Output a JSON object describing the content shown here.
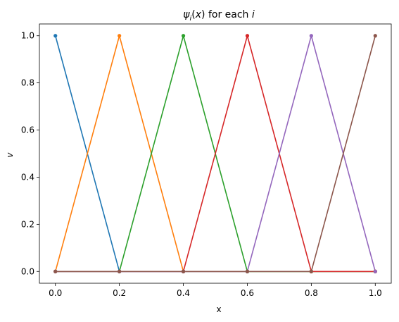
{
  "chart_data": {
    "type": "line",
    "title_parts": {
      "psi": "ψ",
      "sub": "i",
      "rest": "(",
      "x": "x",
      "close": ") for each ",
      "i": "i"
    },
    "xlabel": "x",
    "ylabel": "v",
    "xlim": [
      -0.05,
      1.05
    ],
    "ylim": [
      -0.05,
      1.05
    ],
    "xticks": [
      0.0,
      0.2,
      0.4,
      0.6,
      0.8,
      1.0
    ],
    "xtick_labels": [
      "0.0",
      "0.2",
      "0.4",
      "0.6",
      "0.8",
      "1.0"
    ],
    "yticks": [
      0.0,
      0.2,
      0.4,
      0.6,
      0.8,
      1.0
    ],
    "ytick_labels": [
      "0.0",
      "0.2",
      "0.4",
      "0.6",
      "0.8",
      "1.0"
    ],
    "grid": false,
    "legend": "none",
    "x": [
      0.0,
      0.2,
      0.4,
      0.6,
      0.8,
      1.0
    ],
    "series": [
      {
        "color": "#1f77b4",
        "values": [
          1,
          0,
          0,
          0,
          0,
          0
        ]
      },
      {
        "color": "#ff7f0e",
        "values": [
          0,
          1,
          0,
          0,
          0,
          0
        ]
      },
      {
        "color": "#2ca02c",
        "values": [
          0,
          0,
          1,
          0,
          0,
          0
        ]
      },
      {
        "color": "#d62728",
        "values": [
          0,
          0,
          0,
          1,
          0,
          0
        ]
      },
      {
        "color": "#9467bd",
        "values": [
          0,
          0,
          0,
          0,
          1,
          0
        ]
      },
      {
        "color": "#8c564b",
        "values": [
          0,
          0,
          0,
          0,
          0,
          1
        ]
      }
    ]
  }
}
